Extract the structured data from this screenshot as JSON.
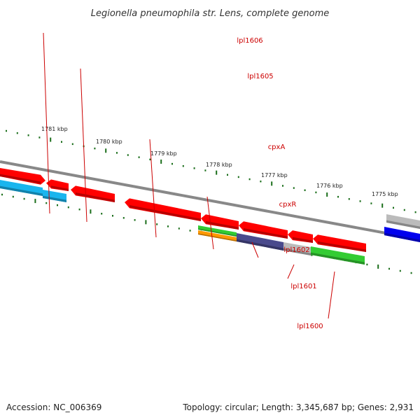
{
  "title": "Legionella pneumophila str. Lens, complete genome",
  "accession_label": "Accession: NC_006369",
  "summary_label": "Topology: circular; Length: 3,345,687 bp; Genes: 2,931",
  "colors": {
    "backbone": "#888888",
    "tick": "#1a6e1a",
    "label": "#cc0000",
    "red": "#ff0000",
    "cyan": "#19b5ee",
    "green": "#33cc33",
    "orange": "#ff9900",
    "navy": "#4a4a8c",
    "gray": "#bbbbbb",
    "blue": "#0000ee"
  },
  "kbp_labels": [
    "1781 kbp",
    "1780 kbp",
    "1779 kbp",
    "1778 kbp",
    "1777 kbp",
    "1776 kbp",
    "1775 kbp"
  ],
  "genes": [
    {
      "label": "lpl1606"
    },
    {
      "label": "lpl1605"
    },
    {
      "label": "cpxA"
    },
    {
      "label": "cpxR"
    },
    {
      "label": "lpl1602"
    },
    {
      "label": "lpl1601"
    },
    {
      "label": "lpl1600"
    }
  ]
}
